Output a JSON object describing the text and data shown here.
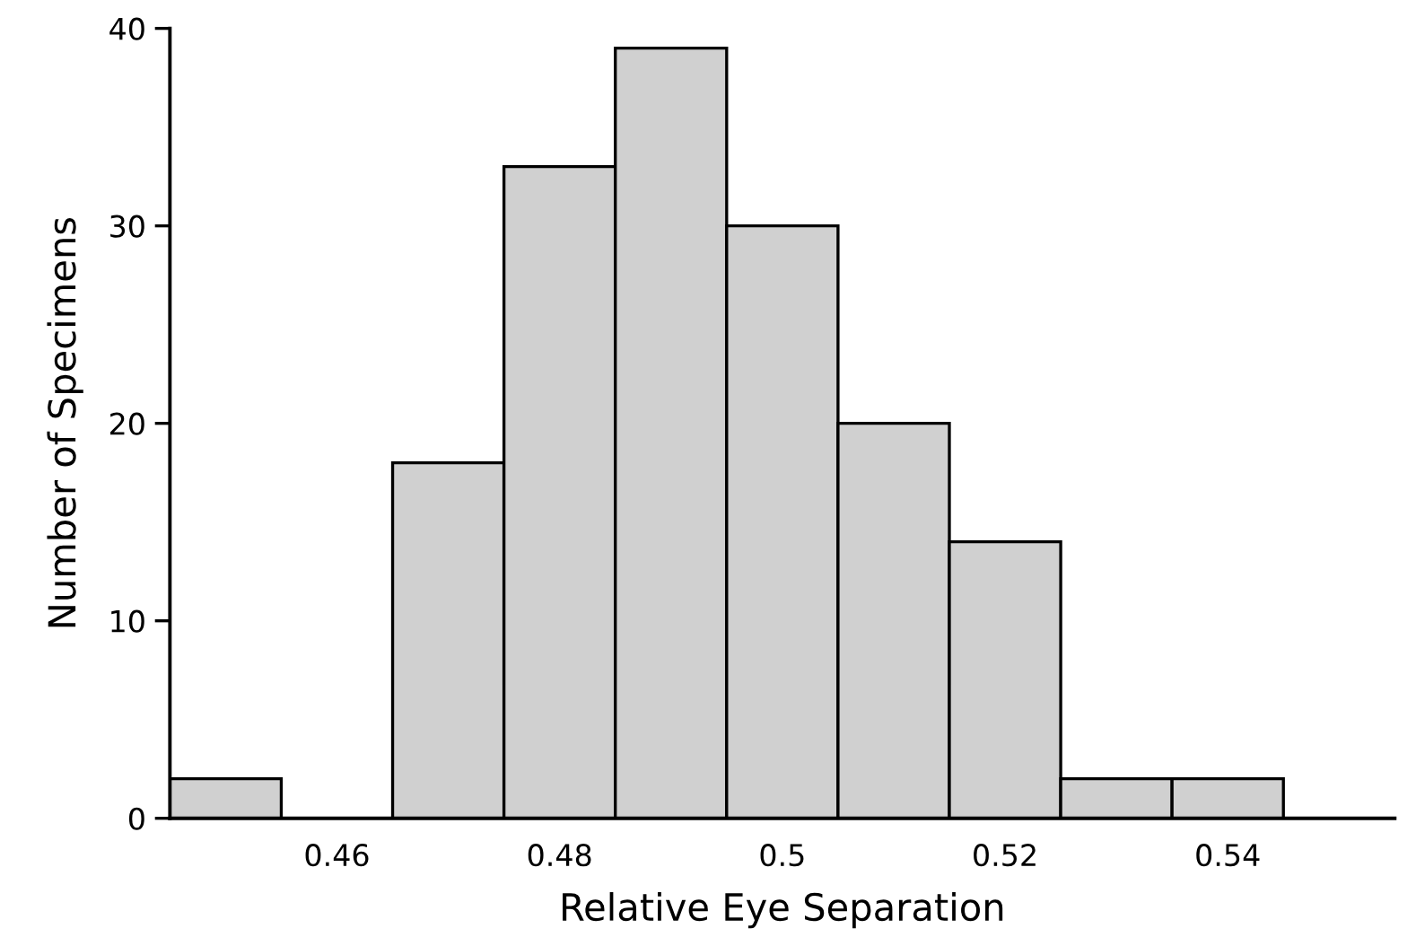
{
  "chart_data": {
    "type": "histogram",
    "xlabel": "Relative Eye Separation",
    "ylabel": "Number of Specimens",
    "bins": [
      0.445,
      0.455,
      0.465,
      0.475,
      0.485,
      0.495,
      0.505,
      0.515,
      0.525,
      0.535,
      0.545
    ],
    "values": [
      2,
      0,
      18,
      33,
      39,
      30,
      20,
      14,
      2,
      2
    ],
    "color": "#d0d0d0",
    "xlim": [
      0.445,
      0.555
    ],
    "xticks": [
      0.46,
      0.48,
      0.5,
      0.52,
      0.54
    ],
    "ylim": [
      0,
      40
    ],
    "yticks": [
      0,
      10,
      20,
      30,
      40
    ],
    "grid": false
  }
}
